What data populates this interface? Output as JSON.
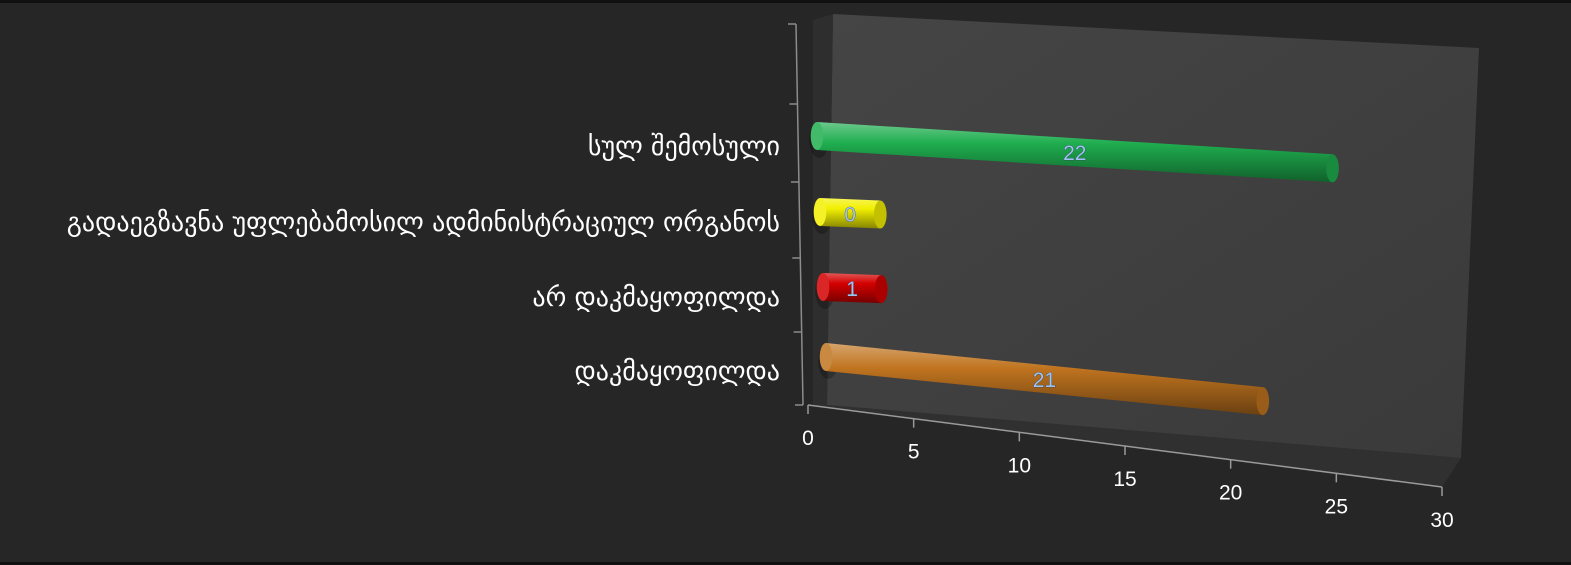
{
  "chart_data": {
    "type": "bar",
    "orientation": "horizontal",
    "style": "3d-cylinder",
    "categories": [
      "სულ შემოსული",
      "გადაეგზავნა უფლებამოსილ ადმინისტრაციულ ორგანოს",
      "არ დაკმაყოფილდა",
      "დაკმაყოფილდა"
    ],
    "values": [
      22,
      0,
      1,
      21
    ],
    "data_labels": [
      "22",
      "0",
      "1",
      "21"
    ],
    "colors": [
      "#1fae4f",
      "#f2f000",
      "#d40000",
      "#c0741f"
    ],
    "xlim": [
      0,
      30
    ],
    "x_ticks": [
      "0",
      "5",
      "10",
      "15",
      "20",
      "25",
      "30"
    ],
    "title": "",
    "xlabel": "",
    "ylabel": "",
    "legend": "none"
  }
}
